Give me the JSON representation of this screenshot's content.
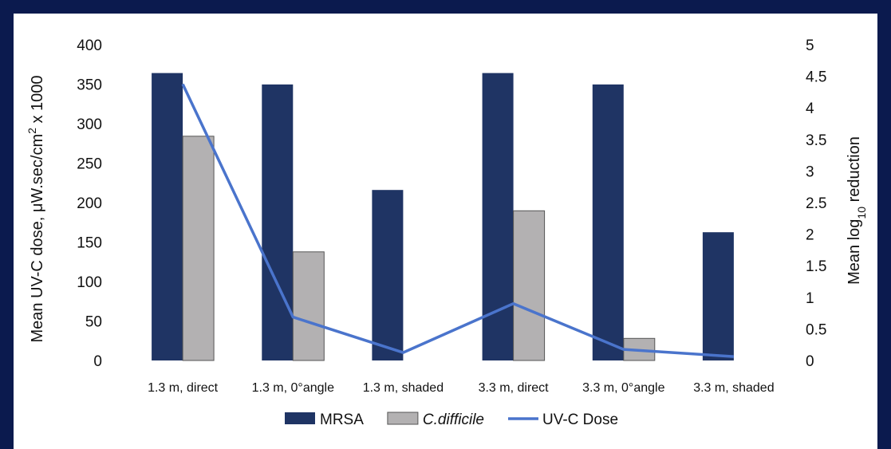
{
  "chart_data": {
    "type": "bar",
    "categories": [
      "1.3 m, direct",
      "1.3 m, 0°angle",
      "1.3 m, shaded",
      "3.3 m, direct",
      "3.3 m, 0°angle",
      "3.3 m, shaded"
    ],
    "series": [
      {
        "name": "MRSA",
        "axis": "right",
        "type": "bar",
        "color": "#1f3464",
        "values": [
          4.55,
          4.37,
          2.7,
          4.55,
          4.37,
          2.03
        ]
      },
      {
        "name": "C.difficile",
        "axis": "right",
        "type": "bar",
        "color": "#b3b1b2",
        "values": [
          3.55,
          1.72,
          0,
          2.37,
          0.35,
          0
        ]
      },
      {
        "name": "UV-C Dose",
        "axis": "left",
        "type": "line",
        "color": "#4a74cc",
        "values": [
          350,
          55,
          10,
          72,
          14,
          5
        ]
      }
    ],
    "ylabel_left": "Mean UV-C dose, μW.sec/cm² x 1000",
    "ylabel_right": "Mean log₁₀ reduction",
    "ylim_left": [
      0,
      400
    ],
    "yticks_left": [
      "0",
      "50",
      "100",
      "150",
      "200",
      "250",
      "300",
      "350",
      "400"
    ],
    "ylim_right": [
      0,
      5
    ],
    "yticks_right": [
      "0",
      "0.5",
      "1",
      "1.5",
      "2",
      "2.5",
      "3",
      "3.5",
      "4",
      "4.5",
      "5"
    ],
    "grid": false,
    "legend_position": "bottom"
  }
}
